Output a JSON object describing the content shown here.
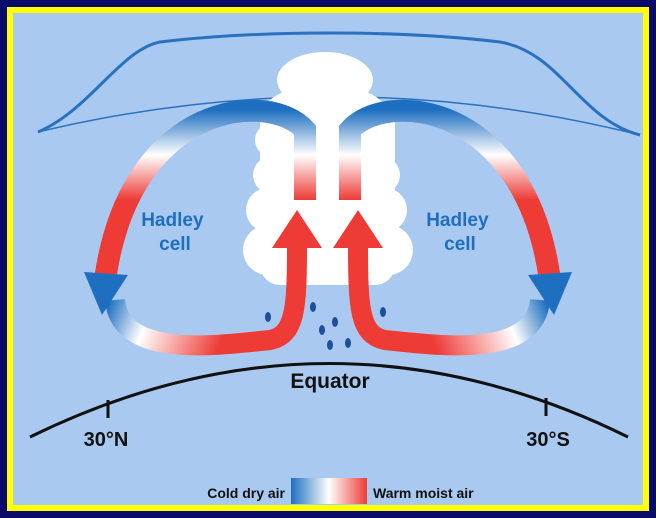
{
  "cells": [
    {
      "label": [
        "Hadley",
        "cell"
      ]
    },
    {
      "label": [
        "Hadley",
        "cell"
      ]
    }
  ],
  "equator": "Equator",
  "latitudes": [
    "30°N",
    "30°S"
  ],
  "legend": {
    "cold": "Cold dry air",
    "warm": "Warm moist air"
  }
}
